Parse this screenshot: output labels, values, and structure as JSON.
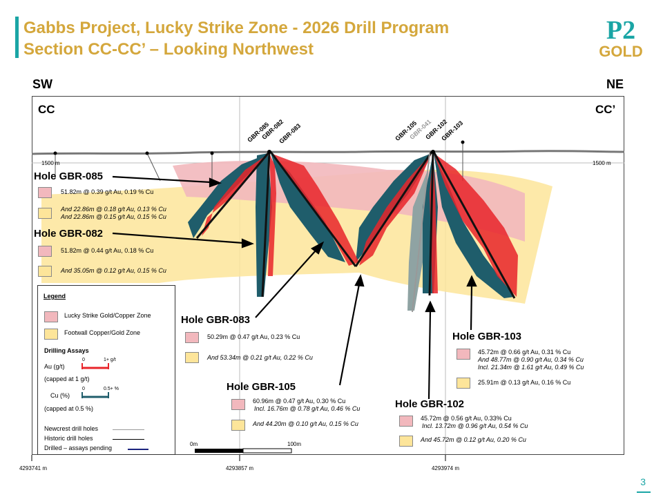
{
  "header": {
    "title_line1": "Gabbs Project, Lucky Strike Zone - 2026 Drill Program",
    "title_line2": "Section CC-CC’ – Looking Northwest"
  },
  "logo": {
    "top": "P2",
    "bottom": "GOLD",
    "icon": "p2-gold-logo"
  },
  "directions": {
    "left": "SW",
    "right": "NE"
  },
  "section": {
    "left": "CC",
    "right": "CC’"
  },
  "elevation": {
    "left": "1500 m",
    "right": "1500 m"
  },
  "eastings": [
    "4293741 m",
    "4293857 m",
    "4293974 m"
  ],
  "hole_labels": [
    "GBR-085",
    "GBR-082",
    "GBR-083",
    "GBR-105",
    "GBR-041",
    "GBR-102",
    "GBR-103"
  ],
  "holes": {
    "h085": {
      "title": "Hole GBR-085",
      "r1": "51.82m @  0.39 g/t Au, 0.19 % Cu",
      "r2a": "And 22.86m @ 0.18 g/t Au, 0.13 % Cu",
      "r2b": "And 22.86m @  0.15 g/t Au, 0.15 % Cu"
    },
    "h082": {
      "title": "Hole GBR-082",
      "r1": "51.82m @  0.44 g/t Au, 0.18 % Cu",
      "r2": "And 35.05m @  0.12 g/t Au, 0.15 % Cu"
    },
    "h083": {
      "title": "Hole GBR-083",
      "r1": "50.29m @  0.47 g/t Au, 0.23 % Cu",
      "r2": "And 53.34m @  0.21 g/t Au, 0.22 % Cu"
    },
    "h105": {
      "title": "Hole GBR-105",
      "r1a": "60.96m @  0.47 g/t Au, 0.30 % Cu",
      "r1b": "Incl. 16.76m @ 0.78 g/t Au, 0.46 % Cu",
      "r2": "And 44.20m @  0.10 g/t Au, 0.15 % Cu"
    },
    "h102": {
      "title": "Hole GBR-102",
      "r1a": "45.72m @  0.56 g/t Au, 0.33% Cu",
      "r1b": "Incl. 13.72m @ 0.96 g/t Au, 0.54 % Cu",
      "r2": "And 45.72m @  0.12 g/t Au, 0.20 % Cu"
    },
    "h103": {
      "title": "Hole GBR-103",
      "r1a": "45.72m @  0.66 g/t Au, 0.31 % Cu",
      "r1b": "And 48.77m @ 0.90 g/t Au, 0.34 % Cu",
      "r1c": "Incl. 21.34m @  1.61 g/t Au, 0.49 % Cu",
      "r2": "25.91m @ 0.13 g/t Au, 0.16 % Cu"
    }
  },
  "legend": {
    "title": "Legend",
    "zone_red": "Lucky Strike Gold/Copper Zone",
    "zone_yellow": "Footwall Copper/Gold Zone",
    "assays_title": "Drilling Assays",
    "au_label": "Au (g/t)",
    "au_min": "0",
    "au_max": "1+ g/t",
    "au_note": "(capped at 1 g/t)",
    "cu_label": "Cu (%)",
    "cu_min": "0",
    "cu_max": "0.5+ %",
    "cu_note": "(capped at 0.5 %)",
    "newcrest": "Newcrest drill holes",
    "historic": "Historic drill holes",
    "pending": "Drilled – assays pending"
  },
  "scale": {
    "zero": "0m",
    "end": "100m"
  },
  "colors": {
    "accent_teal": "#1aa5a5",
    "title_gold": "#d4a73c",
    "au_red": "#e8242a",
    "cu_teal": "#1f5d6b",
    "zone_red": "#f2b8bd",
    "zone_yellow": "#fde59a"
  },
  "page": {
    "number": "3"
  }
}
